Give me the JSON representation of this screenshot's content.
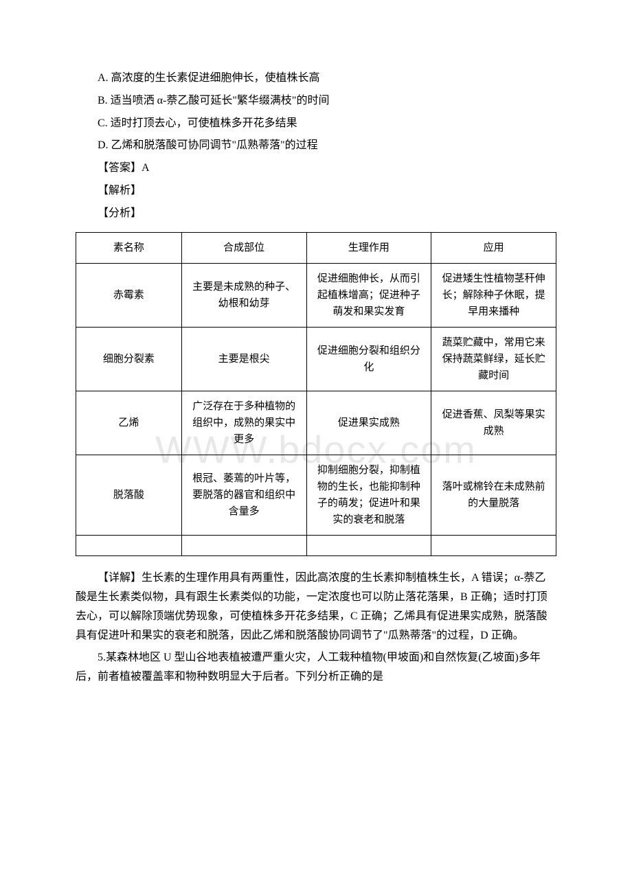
{
  "watermark": "WWW.bdocx.com",
  "options": {
    "A": "A. 高浓度的生长素促进细胞伸长，使植株长高",
    "B": "B. 适当喷洒 α-萘乙酸可延长\"繁华缀满枝\"的时间",
    "C": "C. 适时打顶去心，可使植株多开花多结果",
    "D": "D. 乙烯和脱落酸可协同调节\"瓜熟蒂落\"的过程"
  },
  "answer_label": "【答案】A",
  "analysis_label": "【解析】",
  "fenxi_label": "【分析】",
  "table": {
    "header": {
      "c1": "素名称",
      "c2": "合成部位",
      "c3": "生理作用",
      "c4": "应用"
    },
    "rows": [
      {
        "c1": "赤霉素",
        "c2": "主要是未成熟的种子、幼根和幼芽",
        "c3": "促进细胞伸长，从而引起植株增高；促进种子萌发和果实发育",
        "c4": "促进矮生性植物茎秆伸长；解除种子休眠，提早用来播种"
      },
      {
        "c1": "细胞分裂素",
        "c2": "主要是根尖",
        "c3": "促进细胞分裂和组织分化",
        "c4": "蔬菜贮藏中，常用它来保持蔬菜鲜绿，延长贮藏时间"
      },
      {
        "c1": "乙烯",
        "c2": "广泛存在于多种植物的组织中，成熟的果实中更多",
        "c3": "促进果实成熟",
        "c4": "促进香蕉、凤梨等果实成熟"
      },
      {
        "c1": "脱落酸",
        "c2": "根冠、萎蔫的叶片等，要脱落的器官和组织中含量多",
        "c3": "抑制细胞分裂，抑制植物的生长，也能抑制种子的萌发；促进叶和果实的衰老和脱落",
        "c4": "落叶或棉铃在未成熟前的大量脱落"
      }
    ]
  },
  "detail": "【详解】生长素的生理作用具有两重性，因此高浓度的生长素抑制植株生长，A 错误；α-萘乙酸是生长素类似物，具有跟生长素类似的功能，一定浓度也可以防止落花落果，B 正确；适时打顶去心，可以解除顶端优势现象，可使植株多开花多结果，C 正确；乙烯具有促进果实成熟，脱落酸具有促进叶和果实的衰老和脱落，因此乙烯和脱落酸协同调节了\"瓜熟蒂落\"的过程，D 正确。",
  "q5": "5.某森林地区 U 型山谷地表植被遭严重火灾，人工栽种植物(甲坡面)和自然恢复(乙坡面)多年后，前者植被覆盖率和物种数明显大于后者。下列分析正确的是"
}
